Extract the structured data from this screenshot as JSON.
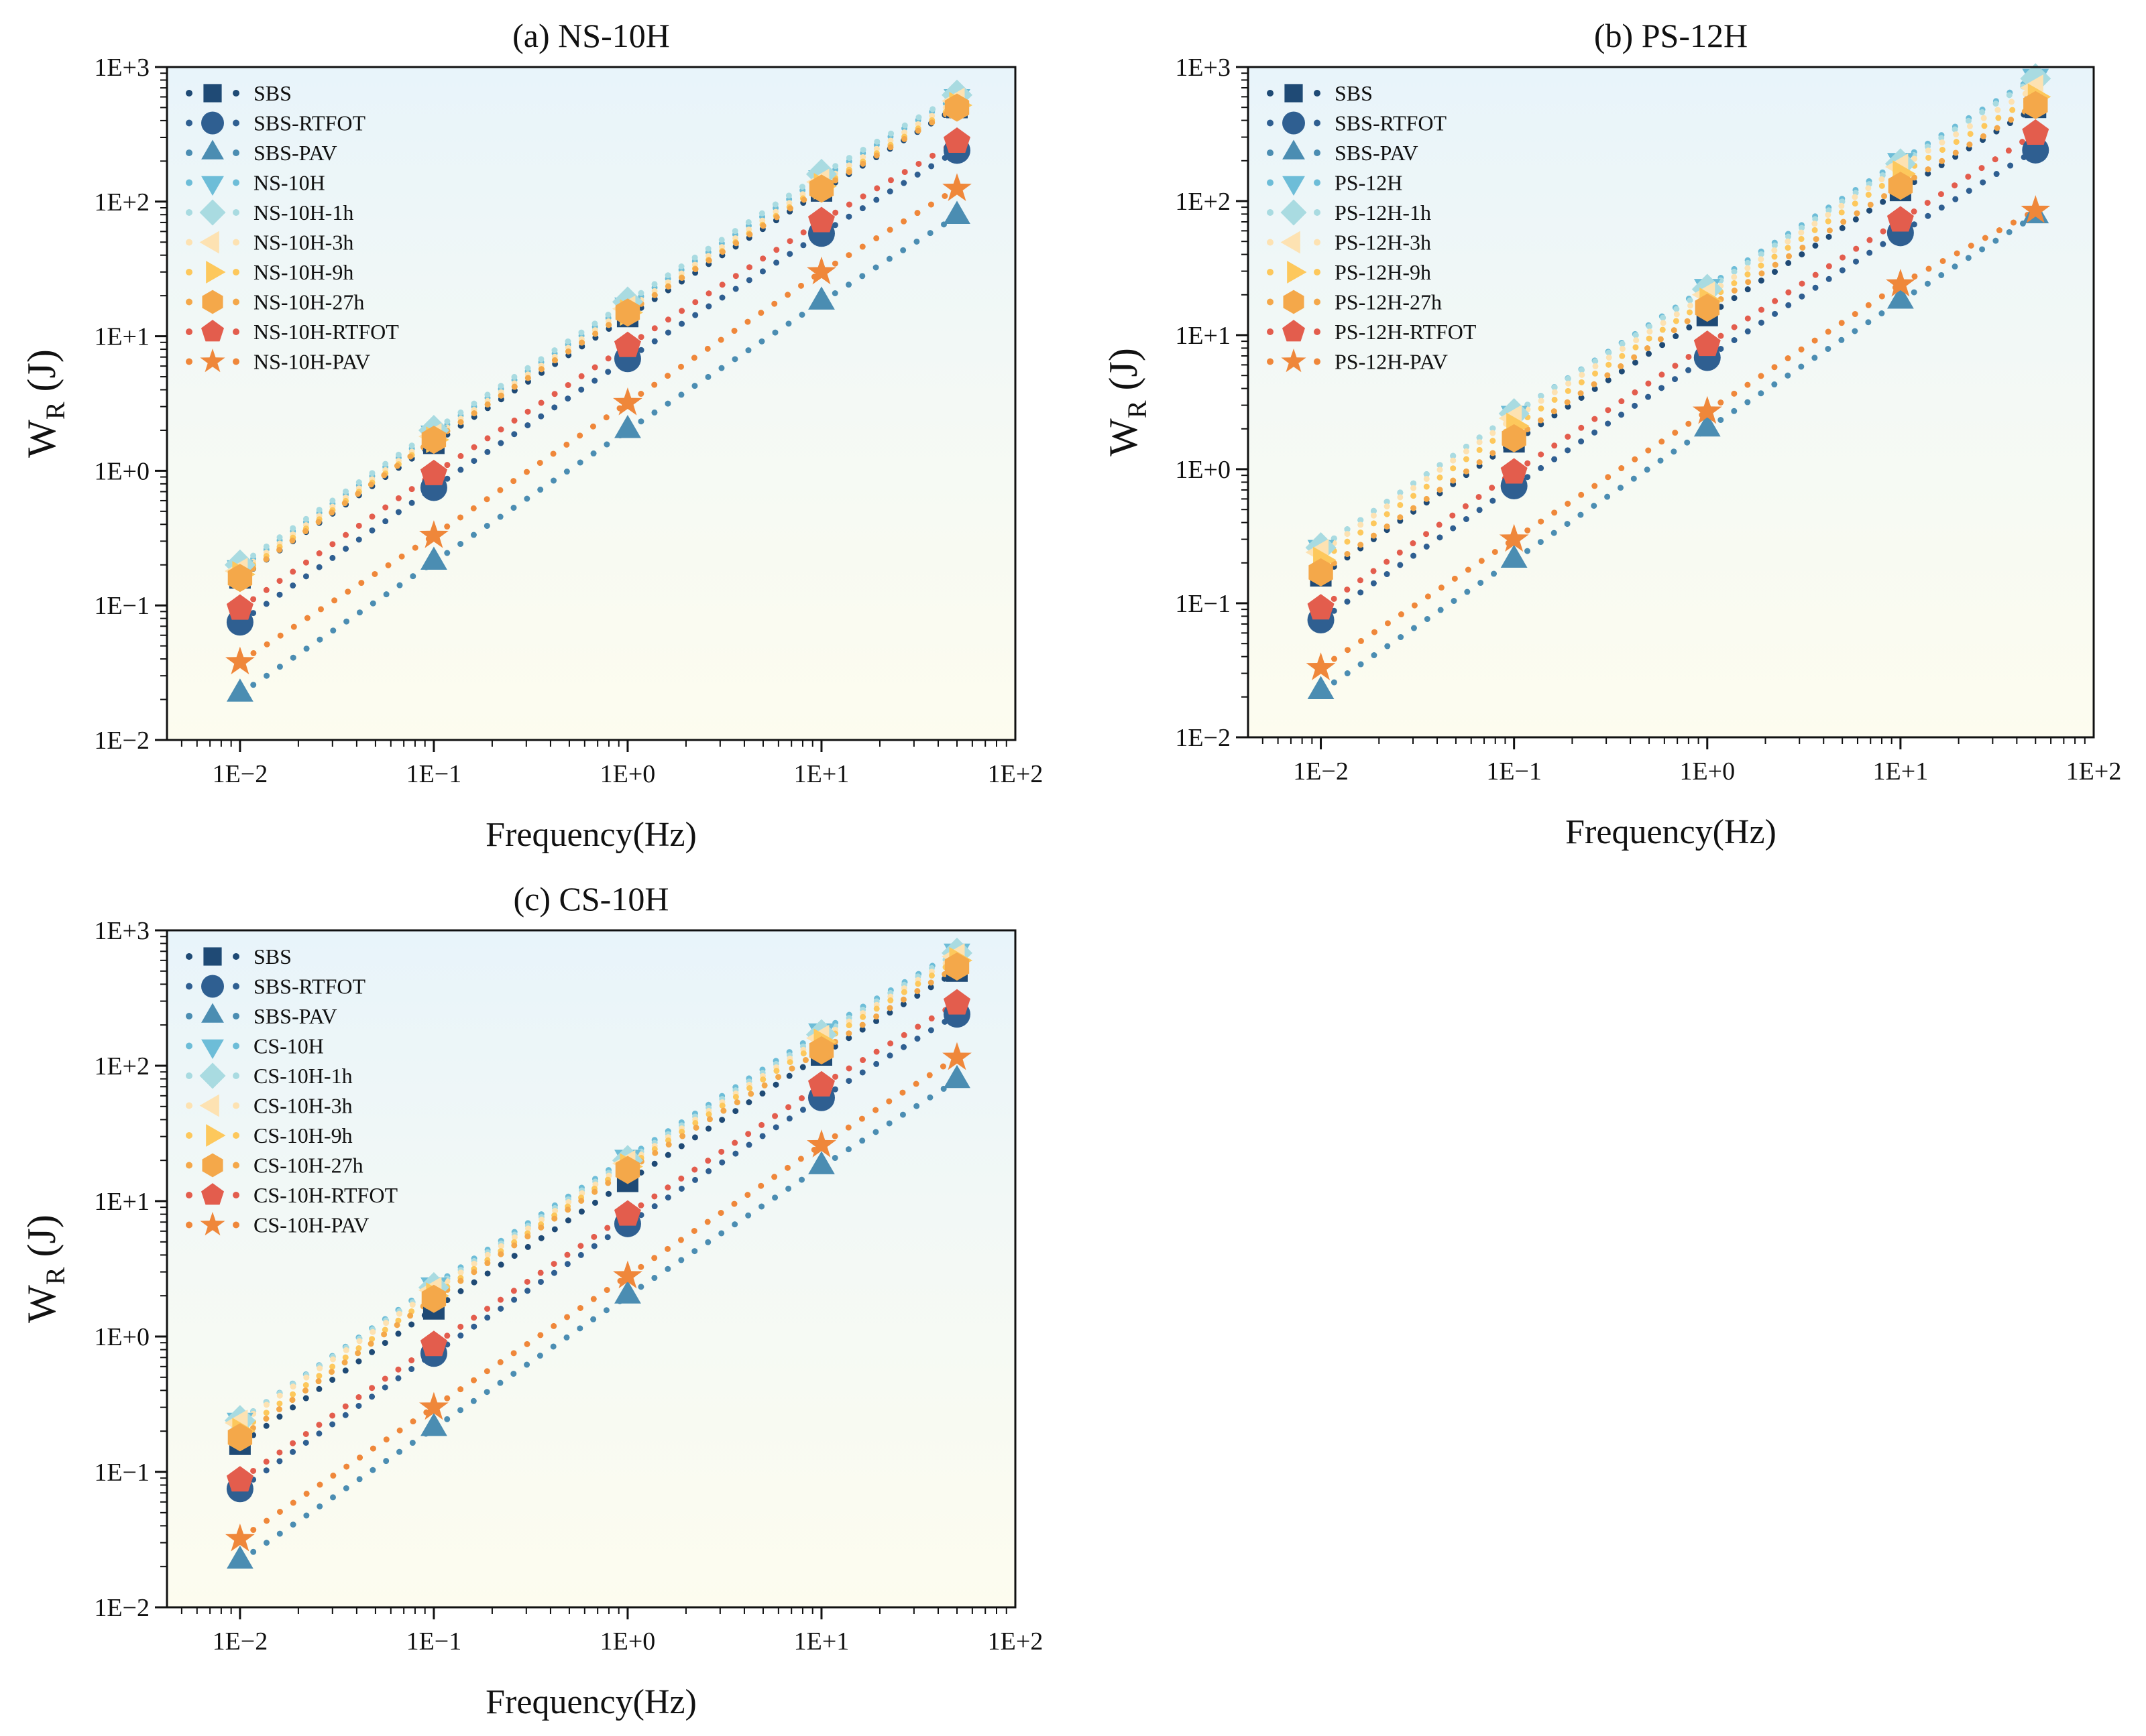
{
  "chart_data": [
    {
      "type": "scatter",
      "title": "(a) NS-10H",
      "xlabel": "Frequency(Hz)",
      "ylabel_main": "W",
      "ylabel_sub": "R",
      "ylabel_unit": " (J)",
      "xscale": "log",
      "yscale": "log",
      "xlim": [
        0.0042,
        100
      ],
      "ylim": [
        0.01,
        1000
      ],
      "xticks": [
        0.01,
        0.1,
        1,
        10,
        100
      ],
      "xtick_labels": [
        "1E−2",
        "1E−1",
        "1E+0",
        "1E+1",
        "1E+2"
      ],
      "yticks": [
        0.01,
        0.1,
        1,
        10,
        100,
        1000
      ],
      "ytick_labels": [
        "1E−2",
        "1E−1",
        "1E+0",
        "1E+1",
        "1E+2",
        "1E+3"
      ],
      "legend_position": "top-left",
      "x": [
        0.01,
        0.1,
        1,
        10,
        50
      ],
      "series": [
        {
          "name": "SBS",
          "marker": "square",
          "color": "#1f4a75",
          "values": [
            0.16,
            1.6,
            14,
            120,
            500
          ]
        },
        {
          "name": "SBS-RTFOT",
          "marker": "circle",
          "color": "#2f5f91",
          "values": [
            0.075,
            0.75,
            6.8,
            58,
            240
          ]
        },
        {
          "name": "SBS-PAV",
          "marker": "triangle-up",
          "color": "#4b8db2",
          "values": [
            0.022,
            0.21,
            2.0,
            18,
            78
          ]
        },
        {
          "name": "NS-10H",
          "marker": "triangle-down",
          "color": "#6dbdd8",
          "values": [
            0.19,
            1.9,
            17,
            150,
            600
          ]
        },
        {
          "name": "NS-10H-1h",
          "marker": "diamond",
          "color": "#a9dbe1",
          "values": [
            0.2,
            2.0,
            18,
            160,
            620
          ]
        },
        {
          "name": "NS-10H-3h",
          "marker": "triangle-left",
          "color": "#fde2b2",
          "values": [
            0.18,
            1.8,
            16,
            140,
            560
          ]
        },
        {
          "name": "NS-10H-9h",
          "marker": "triangle-right",
          "color": "#fdc85c",
          "values": [
            0.17,
            1.7,
            15,
            130,
            520
          ]
        },
        {
          "name": "NS-10H-27h",
          "marker": "hexagon",
          "color": "#f4a84a",
          "values": [
            0.16,
            1.7,
            15,
            125,
            500
          ]
        },
        {
          "name": "NS-10H-RTFOT",
          "marker": "pentagon",
          "color": "#e35d4d",
          "values": [
            0.095,
            0.95,
            8.5,
            72,
            280
          ]
        },
        {
          "name": "NS-10H-PAV",
          "marker": "star",
          "color": "#ef873a",
          "values": [
            0.038,
            0.33,
            3.2,
            30,
            125
          ]
        }
      ]
    },
    {
      "type": "scatter",
      "title": "(b) PS-12H",
      "xlabel": "Frequency(Hz)",
      "ylabel_main": "W",
      "ylabel_sub": "R",
      "ylabel_unit": " (J)",
      "xscale": "log",
      "yscale": "log",
      "xlim": [
        0.0042,
        100
      ],
      "ylim": [
        0.01,
        1000
      ],
      "xticks": [
        0.01,
        0.1,
        1,
        10,
        100
      ],
      "xtick_labels": [
        "1E−2",
        "1E−1",
        "1E+0",
        "1E+1",
        "1E+2"
      ],
      "yticks": [
        0.01,
        0.1,
        1,
        10,
        100,
        1000
      ],
      "ytick_labels": [
        "1E−2",
        "1E−1",
        "1E+0",
        "1E+1",
        "1E+2",
        "1E+3"
      ],
      "legend_position": "top-left",
      "x": [
        0.01,
        0.1,
        1,
        10,
        50
      ],
      "series": [
        {
          "name": "SBS",
          "marker": "square",
          "color": "#1f4a75",
          "values": [
            0.16,
            1.6,
            14,
            120,
            500
          ]
        },
        {
          "name": "SBS-RTFOT",
          "marker": "circle",
          "color": "#2f5f91",
          "values": [
            0.075,
            0.75,
            6.8,
            58,
            240
          ]
        },
        {
          "name": "SBS-PAV",
          "marker": "triangle-up",
          "color": "#4b8db2",
          "values": [
            0.022,
            0.21,
            2.0,
            18,
            78
          ]
        },
        {
          "name": "PS-12H",
          "marker": "triangle-down",
          "color": "#6dbdd8",
          "values": [
            0.26,
            2.6,
            23,
            200,
            850
          ]
        },
        {
          "name": "PS-12H-1h",
          "marker": "diamond",
          "color": "#a9dbe1",
          "values": [
            0.26,
            2.6,
            22,
            190,
            820
          ]
        },
        {
          "name": "PS-12H-3h",
          "marker": "triangle-left",
          "color": "#fde2b2",
          "values": [
            0.24,
            2.4,
            20,
            180,
            700
          ]
        },
        {
          "name": "PS-12H-9h",
          "marker": "triangle-right",
          "color": "#fdc85c",
          "values": [
            0.21,
            2.1,
            18,
            160,
            600
          ]
        },
        {
          "name": "PS-12H-27h",
          "marker": "hexagon",
          "color": "#f4a84a",
          "values": [
            0.17,
            1.7,
            16,
            130,
            520
          ]
        },
        {
          "name": "PS-12H-RTFOT",
          "marker": "pentagon",
          "color": "#e35d4d",
          "values": [
            0.092,
            0.95,
            8.5,
            72,
            320
          ]
        },
        {
          "name": "PS-12H-PAV",
          "marker": "star",
          "color": "#ef873a",
          "values": [
            0.033,
            0.3,
            2.7,
            24,
            85
          ]
        }
      ]
    },
    {
      "type": "scatter",
      "title": "(c) CS-10H",
      "xlabel": "Frequency(Hz)",
      "ylabel_main": "W",
      "ylabel_sub": "R",
      "ylabel_unit": " (J)",
      "xscale": "log",
      "yscale": "log",
      "xlim": [
        0.0042,
        100
      ],
      "ylim": [
        0.01,
        1000
      ],
      "xticks": [
        0.01,
        0.1,
        1,
        10,
        100
      ],
      "xtick_labels": [
        "1E−2",
        "1E−1",
        "1E+0",
        "1E+1",
        "1E+2"
      ],
      "yticks": [
        0.01,
        0.1,
        1,
        10,
        100,
        1000
      ],
      "ytick_labels": [
        "1E−2",
        "1E−1",
        "1E+0",
        "1E+1",
        "1E+2",
        "1E+3"
      ],
      "legend_position": "top-left",
      "x": [
        0.01,
        0.1,
        1,
        10,
        50
      ],
      "series": [
        {
          "name": "SBS",
          "marker": "square",
          "color": "#1f4a75",
          "values": [
            0.16,
            1.6,
            14,
            120,
            500
          ]
        },
        {
          "name": "SBS-RTFOT",
          "marker": "circle",
          "color": "#2f5f91",
          "values": [
            0.075,
            0.75,
            6.8,
            58,
            240
          ]
        },
        {
          "name": "SBS-PAV",
          "marker": "triangle-up",
          "color": "#4b8db2",
          "values": [
            0.022,
            0.21,
            2.0,
            18,
            78
          ]
        },
        {
          "name": "CS-10H",
          "marker": "triangle-down",
          "color": "#6dbdd8",
          "values": [
            0.24,
            2.4,
            21,
            180,
            700
          ]
        },
        {
          "name": "CS-10H-1h",
          "marker": "diamond",
          "color": "#a9dbe1",
          "values": [
            0.24,
            2.3,
            20,
            170,
            680
          ]
        },
        {
          "name": "CS-10H-3h",
          "marker": "triangle-left",
          "color": "#fde2b2",
          "values": [
            0.23,
            2.2,
            19,
            160,
            640
          ]
        },
        {
          "name": "CS-10H-9h",
          "marker": "triangle-right",
          "color": "#fdc85c",
          "values": [
            0.2,
            2.0,
            18,
            150,
            600
          ]
        },
        {
          "name": "CS-10H-27h",
          "marker": "hexagon",
          "color": "#f4a84a",
          "values": [
            0.18,
            1.9,
            17,
            130,
            540
          ]
        },
        {
          "name": "CS-10H-RTFOT",
          "marker": "pentagon",
          "color": "#e35d4d",
          "values": [
            0.087,
            0.87,
            8,
            72,
            290
          ]
        },
        {
          "name": "CS-10H-PAV",
          "marker": "star",
          "color": "#ef873a",
          "values": [
            0.032,
            0.3,
            2.8,
            26,
            115
          ]
        }
      ]
    }
  ]
}
